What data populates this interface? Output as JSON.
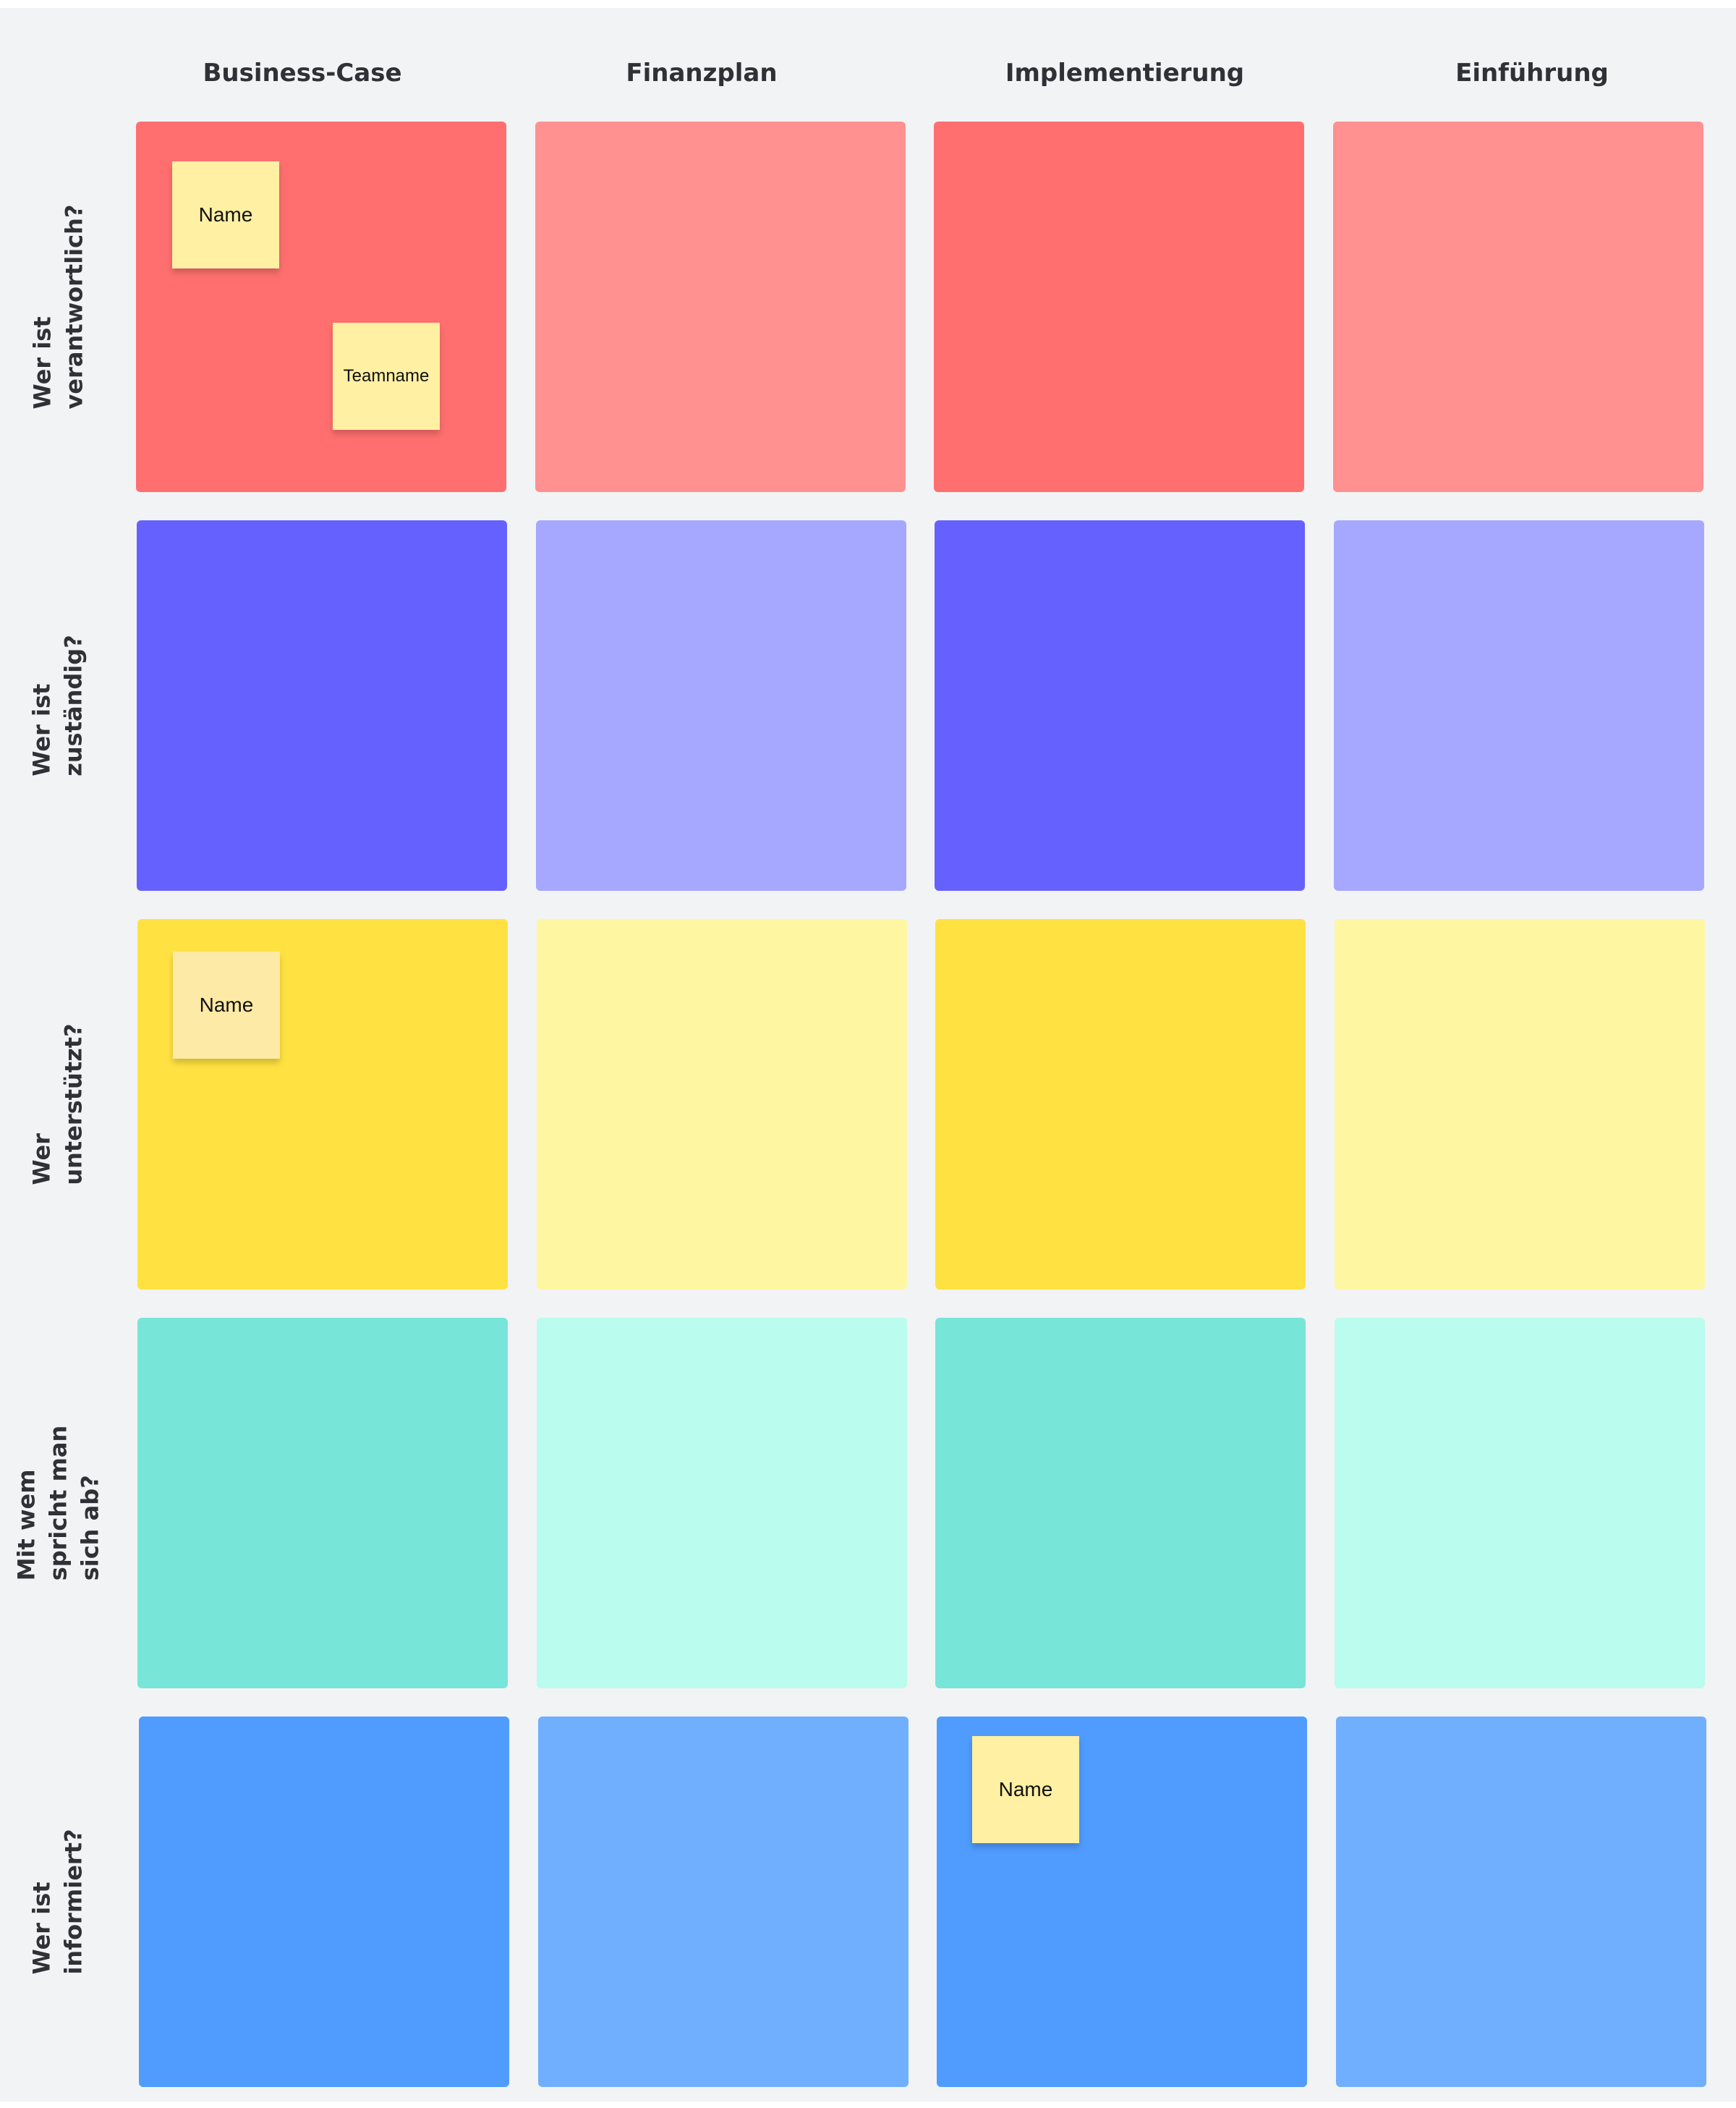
{
  "columns": [
    {
      "label": "Business-Case"
    },
    {
      "label": "Finanzplan"
    },
    {
      "label": "Implementierung"
    },
    {
      "label": "Einführung"
    }
  ],
  "rows": [
    {
      "label_lines": [
        "Wer ist",
        "verantwortlich?"
      ],
      "colors": [
        "#ff6f6f",
        "#ff9190",
        "#ff6f6f",
        "#ff9190"
      ]
    },
    {
      "label_lines": [
        "Wer ist",
        "zuständig?"
      ],
      "colors": [
        "#6561ff",
        "#a6a7fe",
        "#6561ff",
        "#a6a7fe"
      ]
    },
    {
      "label_lines": [
        "Wer",
        "unterstützt?"
      ],
      "colors": [
        "#ffe241",
        "#fff6a2",
        "#ffe241",
        "#fff6a2"
      ]
    },
    {
      "label_lines": [
        "Mit wem",
        "spricht man",
        "sich ab?"
      ],
      "colors": [
        "#78e5d9",
        "#bafcee",
        "#78e5d9",
        "#bafcee"
      ]
    },
    {
      "label_lines": [
        "Wer ist",
        "informiert?"
      ],
      "colors": [
        "#4f9cfe",
        "#70affe",
        "#4f9cfe",
        "#70affe"
      ]
    }
  ],
  "stickies": [
    {
      "text": "Name",
      "row": 0,
      "col": 0
    },
    {
      "text": "Teamname",
      "row": 0,
      "col": 0
    },
    {
      "text": "Name",
      "row": 2,
      "col": 0
    },
    {
      "text": "Name",
      "row": 4,
      "col": 2
    }
  ],
  "sticky_color": "#fff0a3"
}
